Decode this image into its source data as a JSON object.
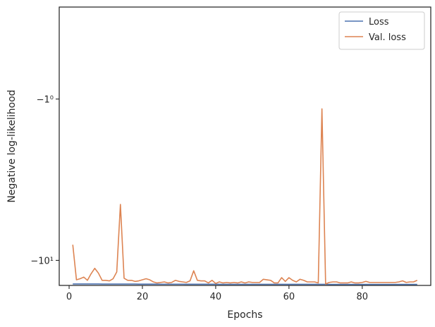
{
  "chart_data": {
    "type": "line",
    "title": "",
    "xlabel": "Epochs",
    "ylabel": "Negative log-likelihood",
    "x": [
      1,
      2,
      3,
      4,
      5,
      6,
      7,
      8,
      9,
      10,
      11,
      12,
      13,
      14,
      15,
      16,
      17,
      18,
      19,
      20,
      21,
      22,
      23,
      24,
      25,
      26,
      27,
      28,
      29,
      30,
      31,
      32,
      33,
      34,
      35,
      36,
      37,
      38,
      39,
      40,
      41,
      42,
      43,
      44,
      45,
      46,
      47,
      48,
      49,
      50,
      51,
      52,
      53,
      54,
      55,
      56,
      57,
      58,
      59,
      60,
      61,
      62,
      63,
      64,
      65,
      66,
      67,
      68,
      69,
      70,
      71,
      72,
      73,
      74,
      75,
      76,
      77,
      78,
      79,
      80,
      81,
      82,
      83,
      84,
      85,
      86,
      87,
      88,
      89,
      90,
      91,
      92,
      93,
      94,
      95
    ],
    "series": [
      {
        "name": "Loss",
        "color": "#4c72b0",
        "values": [
          -14.0,
          -14.0,
          -14.0,
          -14.0,
          -14.01,
          -14.01,
          -14.01,
          -14.01,
          -14.02,
          -14.02,
          -14.02,
          -14.02,
          -14.02,
          -14.03,
          -14.03,
          -14.03,
          -14.03,
          -14.03,
          -14.04,
          -14.04,
          -14.04,
          -14.04,
          -14.04,
          -14.04,
          -14.05,
          -14.05,
          -14.05,
          -14.05,
          -14.05,
          -14.05,
          -14.05,
          -14.06,
          -14.06,
          -14.06,
          -14.06,
          -14.06,
          -14.06,
          -14.06,
          -14.06,
          -14.06,
          -14.07,
          -14.07,
          -14.07,
          -14.07,
          -14.07,
          -14.07,
          -14.07,
          -14.07,
          -14.07,
          -14.07,
          -14.07,
          -14.08,
          -14.08,
          -14.08,
          -14.08,
          -14.08,
          -14.08,
          -14.08,
          -14.08,
          -14.08,
          -14.08,
          -14.08,
          -14.08,
          -14.08,
          -14.08,
          -14.08,
          -14.08,
          -14.08,
          -14.08,
          -14.08,
          -14.09,
          -14.09,
          -14.09,
          -14.09,
          -14.09,
          -14.09,
          -14.09,
          -14.09,
          -14.09,
          -14.09,
          -14.09,
          -14.09,
          -14.09,
          -14.09,
          -14.09,
          -14.09,
          -14.09,
          -14.09,
          -14.09,
          -14.09,
          -14.09,
          -14.09,
          -14.09,
          -14.09,
          -14.09
        ]
      },
      {
        "name": "Val. loss",
        "color": "#dd8452",
        "values": [
          -8.0,
          -13.2,
          -13.0,
          -12.7,
          -13.3,
          -12.1,
          -11.2,
          -12.0,
          -13.3,
          -13.3,
          -13.4,
          -13.0,
          -11.8,
          -4.5,
          -12.9,
          -13.3,
          -13.3,
          -13.5,
          -13.4,
          -13.2,
          -13.0,
          -13.2,
          -13.6,
          -13.8,
          -13.7,
          -13.6,
          -13.8,
          -13.7,
          -13.3,
          -13.5,
          -13.6,
          -13.7,
          -13.4,
          -11.6,
          -13.3,
          -13.4,
          -13.4,
          -13.8,
          -13.3,
          -13.9,
          -13.6,
          -13.8,
          -13.7,
          -13.8,
          -13.7,
          -13.8,
          -13.6,
          -13.8,
          -13.6,
          -13.7,
          -13.7,
          -13.7,
          -13.1,
          -13.2,
          -13.3,
          -13.8,
          -13.8,
          -12.8,
          -13.5,
          -12.8,
          -13.3,
          -13.6,
          -13.1,
          -13.3,
          -13.6,
          -13.6,
          -13.6,
          -13.8,
          -1.15,
          -14.0,
          -13.7,
          -13.6,
          -13.6,
          -13.8,
          -13.8,
          -13.8,
          -13.6,
          -13.8,
          -13.8,
          -13.7,
          -13.5,
          -13.7,
          -13.7,
          -13.7,
          -13.7,
          -13.7,
          -13.7,
          -13.7,
          -13.7,
          -13.6,
          -13.4,
          -13.7,
          -13.6,
          -13.6,
          -13.3
        ]
      }
    ],
    "yscale": "symlog",
    "xlim": [
      -2.7,
      98.7
    ],
    "ylim": [
      -14.3,
      -0.43
    ],
    "xticks": [
      0,
      20,
      40,
      60,
      80
    ],
    "xtick_labels": [
      "0",
      "20",
      "40",
      "60",
      "80"
    ],
    "yticks": [
      -1,
      -10
    ],
    "ytick_labels": [
      "−1⁰",
      "−10¹"
    ],
    "grid": false,
    "legend": "top-right"
  }
}
